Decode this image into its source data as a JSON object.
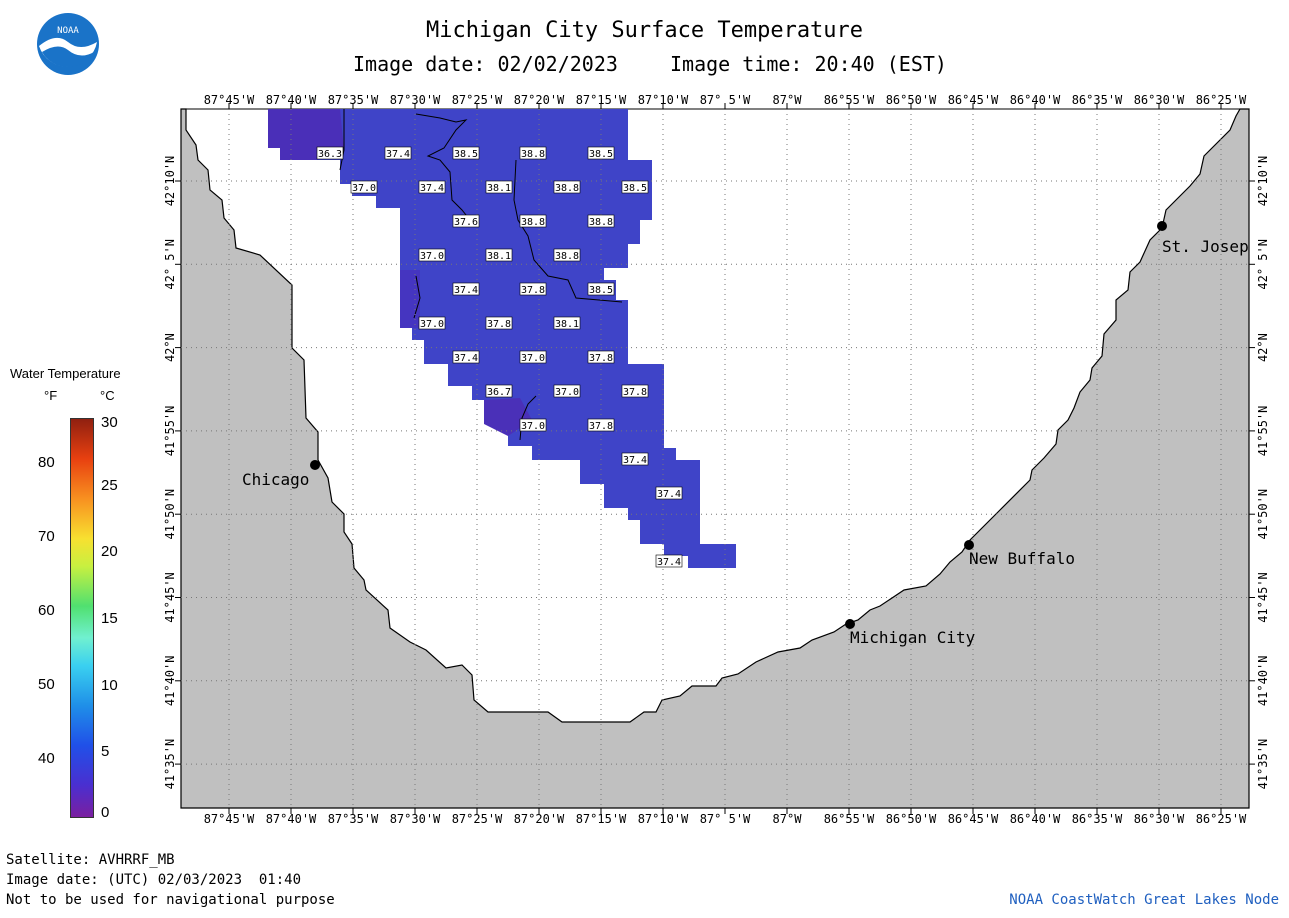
{
  "header": {
    "title": "Michigan City Surface Temperature",
    "image_date": "Image date: 02/02/2023",
    "image_time": "Image time: 20:40 (EST)"
  },
  "logo": {
    "text": "NOAA"
  },
  "legend": {
    "title": "Water Temperature",
    "unit_f": "°F",
    "unit_c": "°C",
    "f_ticks": [
      "80",
      "70",
      "60",
      "50",
      "40"
    ],
    "c_ticks": [
      "30",
      "25",
      "20",
      "15",
      "10",
      "5",
      "0"
    ]
  },
  "axes": {
    "lon_labels": [
      "87°45'W",
      "87°40'W",
      "87°35'W",
      "87°30'W",
      "87°25'W",
      "87°20'W",
      "87°15'W",
      "87°10'W",
      "87° 5'W",
      "87°W",
      "86°55'W",
      "86°50'W",
      "86°45'W",
      "86°40'W",
      "86°35'W",
      "86°30'W",
      "86°25'W"
    ],
    "lat_labels": [
      "42°10'N",
      "42° 5'N",
      "42°N",
      "41°55'N",
      "41°50'N",
      "41°45'N",
      "41°40'N",
      "41°35'N"
    ]
  },
  "cities": [
    {
      "name": "Chicago"
    },
    {
      "name": "St. Josep"
    },
    {
      "name": "New Buffalo"
    },
    {
      "name": "Michigan City"
    }
  ],
  "temperature_labels": [
    "36.3",
    "37.4",
    "38.5",
    "38.8",
    "38.5",
    "37.0",
    "37.4",
    "38.1",
    "38.8",
    "38.5",
    "37.6",
    "38.8",
    "38.8",
    "37.0",
    "38.1",
    "38.8",
    "37.4",
    "37.8",
    "38.5",
    "37.0",
    "37.8",
    "38.1",
    "37.4",
    "37.0",
    "37.8",
    "36.7",
    "37.0",
    "37.8",
    "37.0",
    "37.8",
    "37.4",
    "37.4",
    "37.4"
  ],
  "footer": {
    "satellite": "Satellite: AVHRRF_MB",
    "utc_date": "Image date: (UTC) 02/03/2023  01:40",
    "disclaimer": "Not to be used for navigational purpose",
    "credit": "NOAA CoastWatch Great Lakes Node"
  }
}
